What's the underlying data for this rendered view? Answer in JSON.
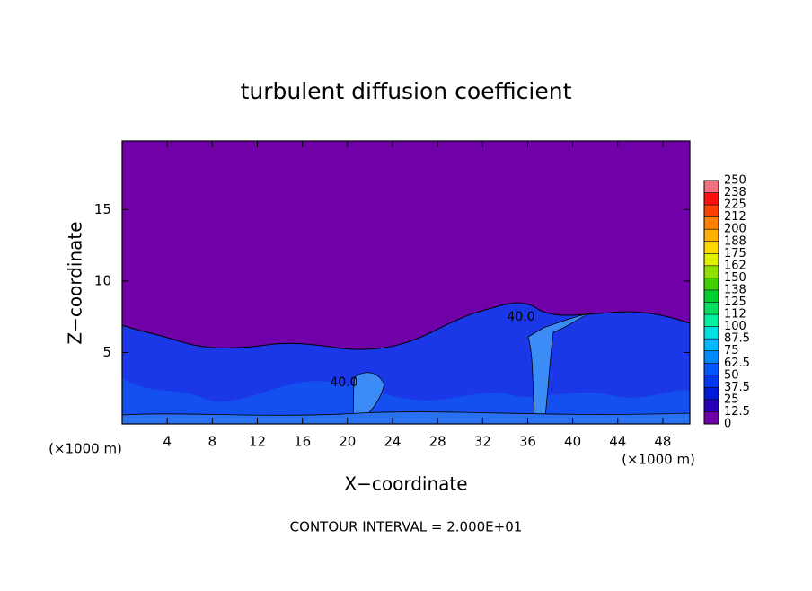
{
  "chart_data": {
    "type": "contour",
    "title": "turbulent diffusion coefficient",
    "xlabel": "X−coordinate",
    "ylabel": "Z−coordinate",
    "x_unit": "(×1000 m)",
    "y_unit": "(×1000 m)",
    "footer": "CONTOUR INTERVAL = 2.000E+01",
    "annotations": [
      "40.0",
      "40.0"
    ],
    "background_color": "#7000a8",
    "xlim": [
      0,
      50.4
    ],
    "xticks": [
      4,
      8,
      12,
      16,
      20,
      24,
      28,
      32,
      36,
      40,
      44,
      48
    ],
    "ylim": [
      0,
      19.8
    ],
    "yticks": [
      5,
      10,
      15
    ],
    "colorbar": {
      "ticks": [
        0,
        12.5,
        25,
        37.5,
        50,
        62.5,
        75,
        87.5,
        100,
        {
          "value": 112.5,
          "label": "112"
        },
        125,
        {
          "value": 137.5,
          "label": "138"
        },
        150,
        {
          "value": 162.5,
          "label": "162"
        },
        175,
        {
          "value": 187.5,
          "label": "188"
        },
        200,
        {
          "value": 212.5,
          "label": "212"
        },
        225,
        {
          "value": 237.5,
          "label": "238"
        },
        250
      ],
      "colors": [
        "#7000a8",
        "#2800b8",
        "#0018d8",
        "#0038f0",
        "#0058ff",
        "#0088ff",
        "#00b8ff",
        "#00e0e0",
        "#00f0a0",
        "#00e060",
        "#00d030",
        "#40d000",
        "#90e000",
        "#e0f000",
        "#ffd800",
        "#ffb000",
        "#ff8000",
        "#ff4000",
        "#ff1010",
        "#f07080"
      ]
    }
  }
}
